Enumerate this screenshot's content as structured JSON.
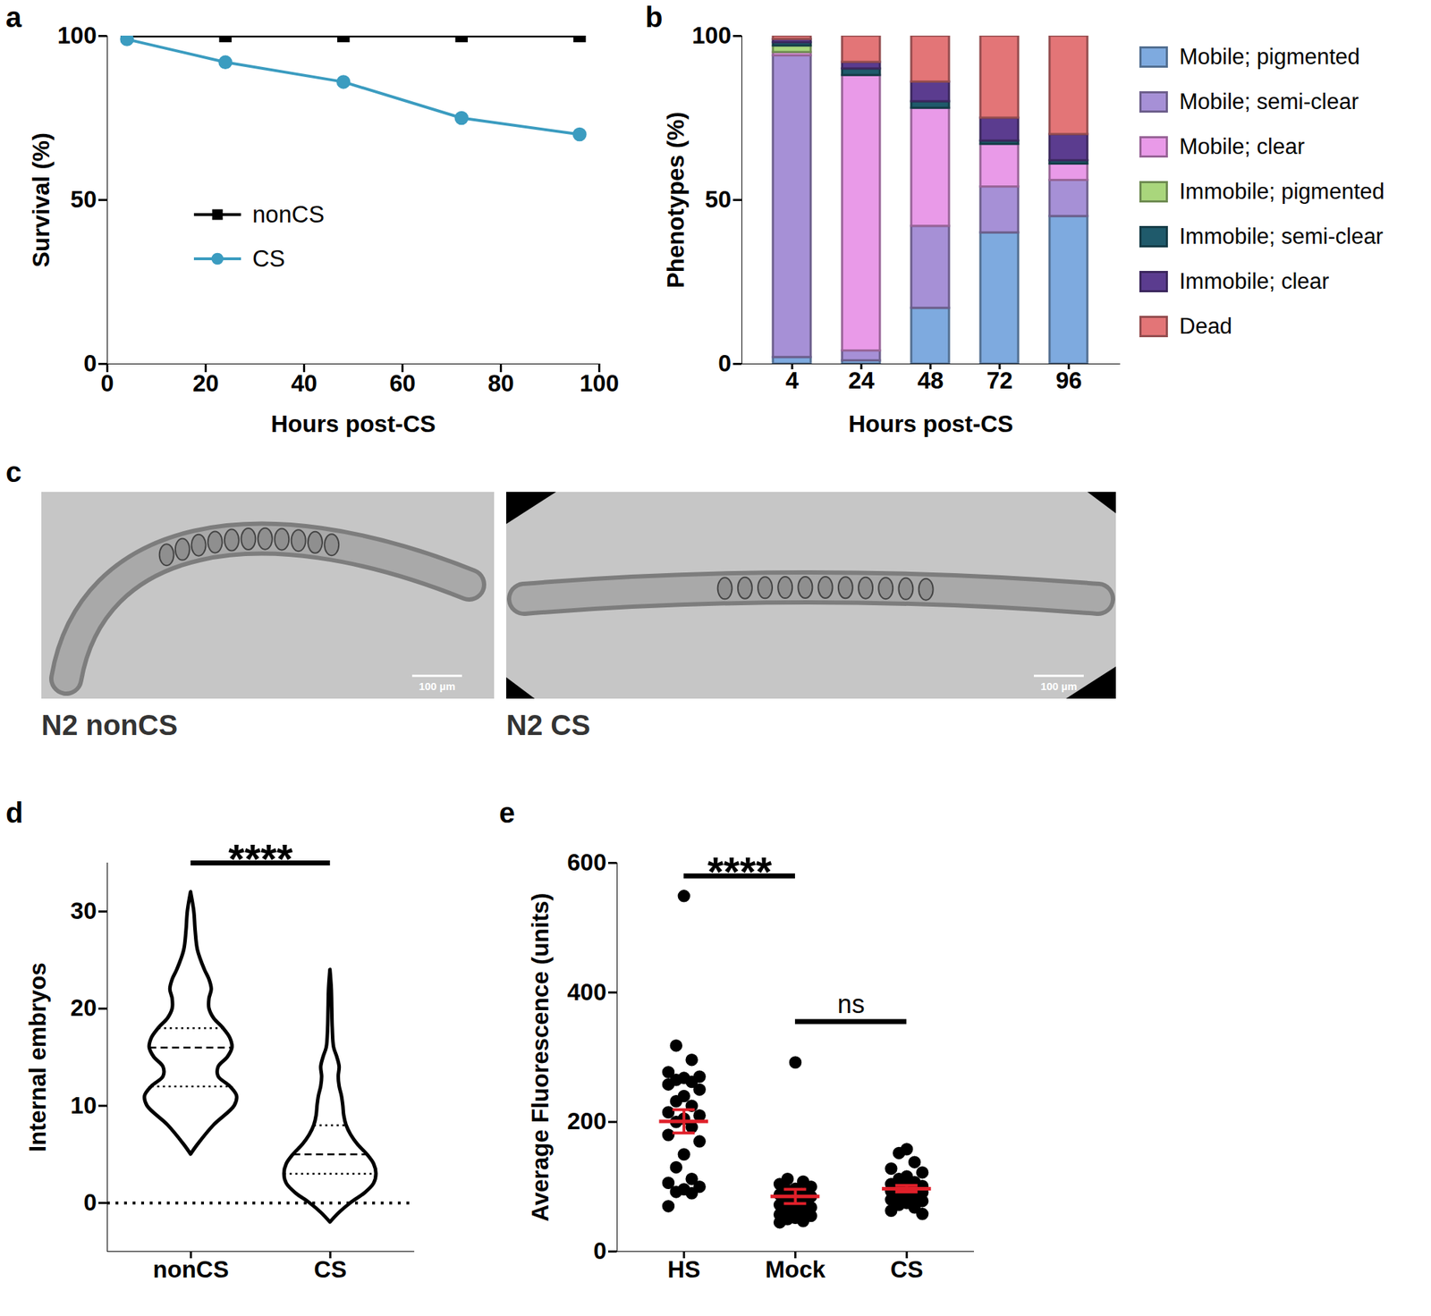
{
  "chart_data": [
    {
      "panel": "a",
      "type": "line",
      "xlabel": "Hours post-CS",
      "ylabel": "Survival (%)",
      "x": [
        4,
        24,
        48,
        72,
        96
      ],
      "series": [
        {
          "name": "nonCS",
          "color": "#000000",
          "marker": "square",
          "values": [
            100,
            100,
            100,
            100,
            100
          ]
        },
        {
          "name": "CS",
          "color": "#3b9cc0",
          "marker": "circle",
          "values": [
            99,
            92,
            86,
            75,
            70
          ]
        }
      ],
      "xlim": [
        0,
        100
      ],
      "xticks": [
        0,
        20,
        40,
        60,
        80,
        100
      ],
      "ylim": [
        0,
        100
      ],
      "yticks": [
        0,
        50,
        100
      ],
      "legend": "left"
    },
    {
      "panel": "b",
      "type": "bar",
      "stacked": true,
      "xlabel": "Hours post-CS",
      "ylabel": "Phenotypes (%)",
      "categories": [
        "4",
        "24",
        "48",
        "72",
        "96"
      ],
      "series": [
        {
          "name": "Mobile; pigmented",
          "color": "#7eaadf",
          "values": [
            2,
            1,
            17,
            40,
            45
          ]
        },
        {
          "name": "Mobile; semi-clear",
          "color": "#a690d6",
          "values": [
            92,
            3,
            25,
            14,
            11
          ]
        },
        {
          "name": "Mobile; clear",
          "color": "#e99ae8",
          "values": [
            1,
            84,
            36,
            13,
            5
          ]
        },
        {
          "name": "Immobile; pigmented",
          "color": "#a9d67c",
          "values": [
            2,
            0,
            0,
            0,
            0
          ]
        },
        {
          "name": "Immobile; semi-clear",
          "color": "#1f5a6b",
          "values": [
            1,
            2,
            2,
            1,
            1
          ]
        },
        {
          "name": "Immobile; clear",
          "color": "#5b3c8f",
          "values": [
            1,
            2,
            6,
            7,
            8
          ]
        },
        {
          "name": "Dead",
          "color": "#e37577",
          "values": [
            1,
            8,
            14,
            25,
            30
          ]
        }
      ],
      "ylim": [
        0,
        100
      ],
      "yticks": [
        0,
        50,
        100
      ],
      "legend": "right"
    },
    {
      "panel": "d",
      "type": "violin",
      "ylabel": "Internal embryos",
      "categories": [
        "nonCS",
        "CS"
      ],
      "violins": [
        {
          "y": [
            5,
            6,
            8,
            10,
            11,
            12,
            13,
            14,
            15,
            16,
            17,
            18,
            19,
            20,
            21,
            22,
            23,
            24,
            26,
            28,
            30,
            32
          ],
          "width": [
            0,
            0.15,
            0.5,
            0.95,
            1.0,
            0.85,
            0.6,
            0.6,
            0.8,
            0.9,
            0.85,
            0.7,
            0.5,
            0.4,
            0.4,
            0.45,
            0.4,
            0.3,
            0.15,
            0.1,
            0.07,
            0
          ],
          "median": 16,
          "quartiles": [
            12,
            18
          ]
        },
        {
          "y": [
            -2,
            -1,
            0,
            1,
            2,
            3,
            4,
            5,
            6,
            7,
            8,
            9,
            10,
            11,
            12,
            13,
            14,
            15,
            16,
            18,
            20,
            22,
            24
          ],
          "width": [
            0,
            0.2,
            0.45,
            0.75,
            0.95,
            1.0,
            0.95,
            0.8,
            0.6,
            0.45,
            0.35,
            0.3,
            0.28,
            0.25,
            0.2,
            0.18,
            0.2,
            0.15,
            0.08,
            0.05,
            0.04,
            0.03,
            0
          ],
          "median": 5,
          "quartiles": [
            3,
            8
          ]
        }
      ],
      "reference_line": 0,
      "ylim": [
        -5,
        35
      ],
      "yticks": [
        0,
        10,
        20,
        30
      ],
      "annotations": [
        {
          "text": "****",
          "from": "nonCS",
          "to": "CS",
          "y": 35
        }
      ]
    },
    {
      "panel": "e",
      "type": "scatter",
      "ylabel": "Average Fluorescence (units)",
      "categories": [
        "HS",
        "Mock",
        "CS"
      ],
      "color": "#000000",
      "values": [
        [
          549,
          318,
          296,
          277,
          270,
          268,
          265,
          262,
          258,
          250,
          240,
          232,
          225,
          215,
          210,
          205,
          200,
          192,
          180,
          170,
          150,
          130,
          112,
          106,
          100,
          96,
          92,
          90,
          70
        ],
        [
          292,
          112,
          108,
          104,
          100,
          97,
          94,
          90,
          88,
          85,
          80,
          78,
          75,
          72,
          68,
          65,
          62,
          60,
          57,
          55,
          52,
          50,
          47,
          45
        ],
        [
          158,
          152,
          138,
          128,
          122,
          116,
          112,
          107,
          104,
          101,
          99,
          97,
          95,
          93,
          91,
          88,
          86,
          83,
          80,
          78,
          75,
          72,
          68,
          63,
          58
        ]
      ],
      "mean": [
        201,
        85,
        97
      ],
      "error": [
        18,
        11,
        5
      ],
      "ylim": [
        0,
        600
      ],
      "yticks": [
        0,
        200,
        400,
        600
      ],
      "annotations": [
        {
          "text": "****",
          "from": "HS",
          "to": "Mock",
          "y": 580
        },
        {
          "text": "ns",
          "from": "Mock",
          "to": "CS",
          "y": 355
        }
      ]
    }
  ],
  "images": {
    "panel": "c",
    "items": [
      {
        "label": "N2 nonCS",
        "scale_bar": "100 µm"
      },
      {
        "label": "N2 CS",
        "scale_bar": "100 µm"
      }
    ]
  }
}
